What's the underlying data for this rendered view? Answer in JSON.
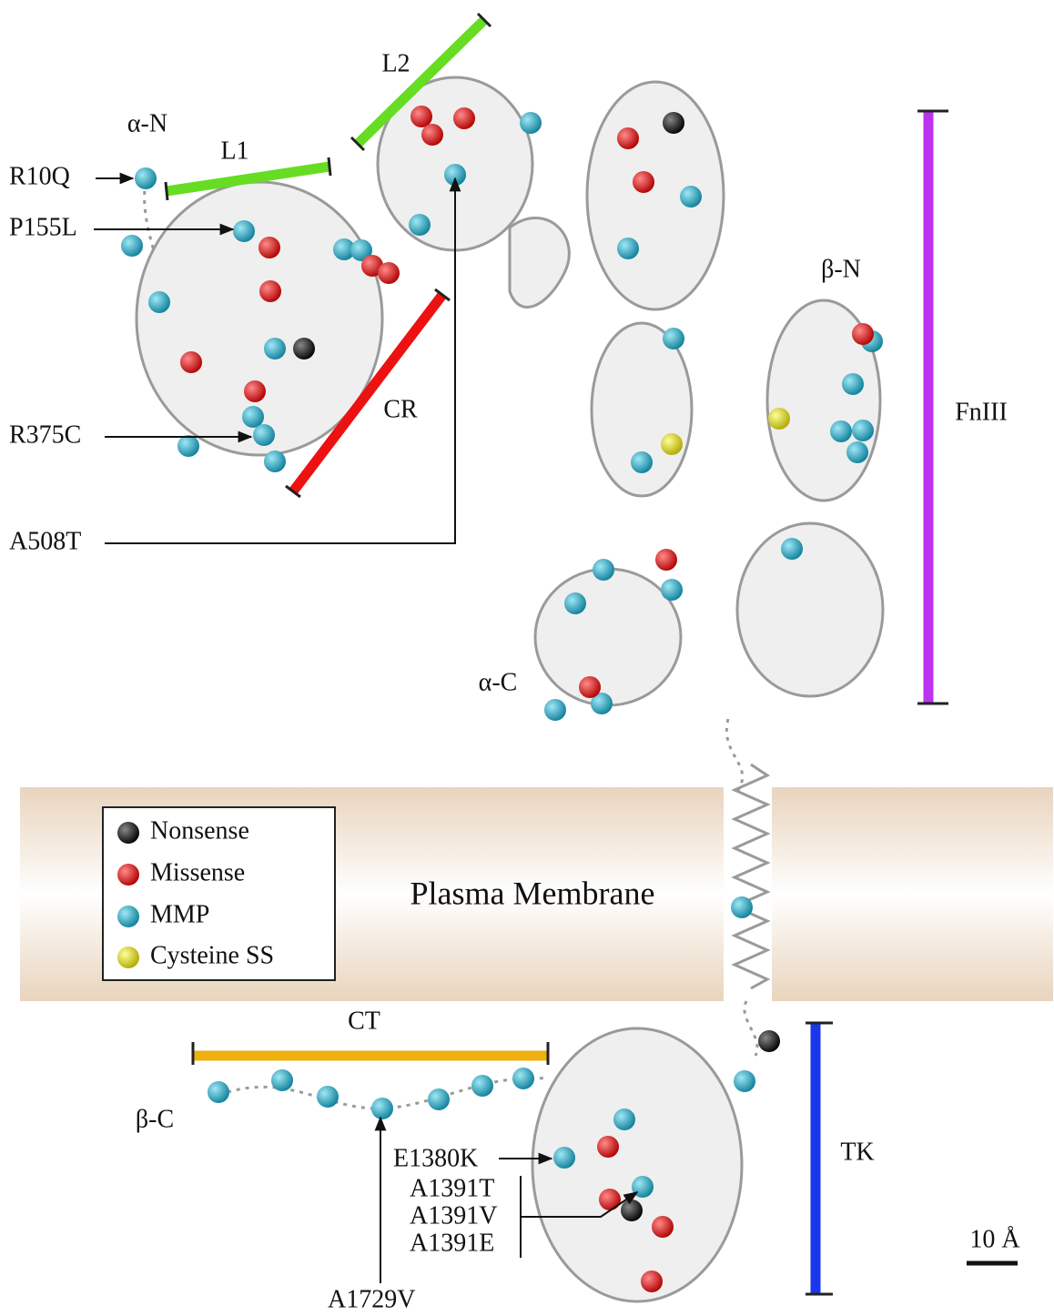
{
  "domains": [
    {
      "label": "L1"
    },
    {
      "label": "L2"
    },
    {
      "label": "CR"
    },
    {
      "label": "FnIII"
    },
    {
      "label": "CT"
    },
    {
      "label": "TK"
    }
  ],
  "termini": [
    "α-N",
    "β-N",
    "α-C",
    "β-C"
  ],
  "mutations": [
    "R10Q",
    "P155L",
    "R375C",
    "A508T",
    "E1380K",
    "A1391T",
    "A1391V",
    "A1391E",
    "A1729V"
  ],
  "legend": [
    {
      "label": "Nonsense"
    },
    {
      "label": "Missense"
    },
    {
      "label": "MMP"
    },
    {
      "label": "Cysteine SS"
    }
  ],
  "membrane_label": "Plasma Membrane",
  "scale_bar": "10 Å"
}
